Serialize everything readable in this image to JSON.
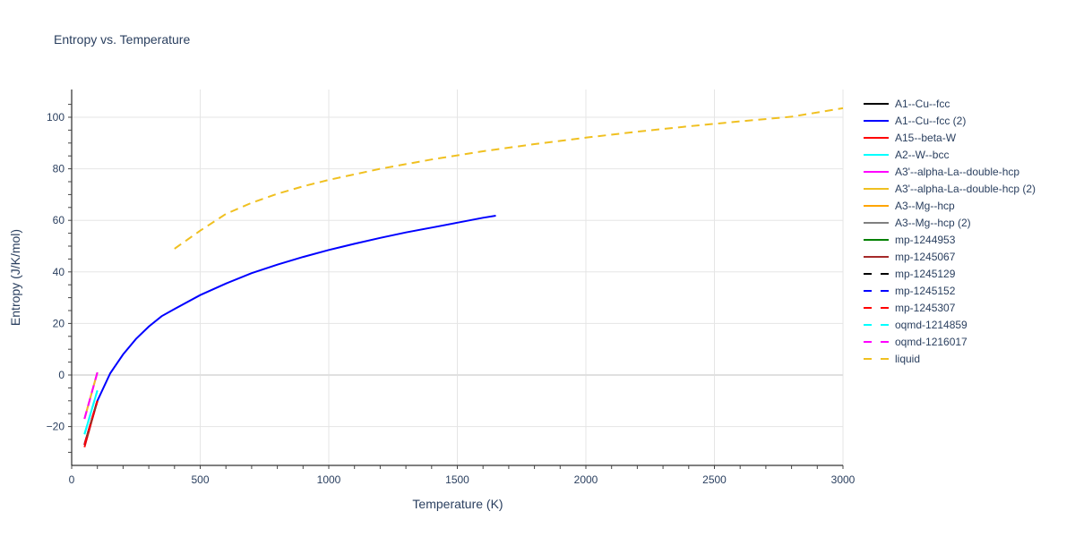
{
  "chart_data": {
    "type": "line",
    "title": "Entropy vs. Temperature",
    "xlabel": "Temperature (K)",
    "ylabel": "Entropy (J/K/mol)",
    "xlim": [
      0,
      3000
    ],
    "ylim": [
      -35,
      110
    ],
    "x_ticks": [
      "0",
      "500",
      "1000",
      "1500",
      "2000",
      "2500",
      "3000"
    ],
    "y_ticks": [
      "−20",
      "0",
      "20",
      "40",
      "60",
      "80",
      "100"
    ],
    "grid": true,
    "legend_position": "right",
    "series": [
      {
        "name": "A1--Cu--fcc",
        "color": "#000000",
        "dash": "solid",
        "x": [
          50,
          100
        ],
        "y": [
          -27,
          -10
        ]
      },
      {
        "name": "A1--Cu--fcc (2)",
        "color": "#0000ff",
        "dash": "solid",
        "x": [
          100,
          150,
          200,
          250,
          300,
          350,
          400,
          500,
          600,
          700,
          800,
          900,
          1000,
          1100,
          1200,
          1300,
          1400,
          1500,
          1600,
          1650
        ],
        "y": [
          -10,
          0.7,
          8,
          14,
          18.8,
          22.8,
          25.6,
          31,
          35.5,
          39.5,
          42.8,
          45.8,
          48.5,
          50.9,
          53.2,
          55.3,
          57.2,
          59.1,
          61,
          61.8
        ]
      },
      {
        "name": "A15--beta-W",
        "color": "#ff0000",
        "dash": "solid",
        "x": [
          50,
          100
        ],
        "y": [
          -28,
          -10
        ]
      },
      {
        "name": "A2--W--bcc",
        "color": "#00ffff",
        "dash": "solid",
        "x": [
          50,
          100
        ],
        "y": [
          -23,
          -6
        ]
      },
      {
        "name": "A3'--alpha-La--double-hcp",
        "color": "#ff00ff",
        "dash": "solid",
        "x": [
          50,
          100
        ],
        "y": [
          -17,
          1
        ]
      },
      {
        "name": "A3'--alpha-La--double-hcp (2)",
        "color": "#f0c020",
        "dash": "solid",
        "x": [
          50,
          100
        ],
        "y": [
          -17,
          1
        ]
      },
      {
        "name": "A3--Mg--hcp",
        "color": "#ffa500",
        "dash": "solid",
        "x": [
          50,
          100
        ],
        "y": [
          -27,
          -10
        ]
      },
      {
        "name": "A3--Mg--hcp (2)",
        "color": "#808080",
        "dash": "solid",
        "x": [
          50,
          100
        ],
        "y": [
          -27,
          -10
        ]
      },
      {
        "name": "mp-1244953",
        "color": "#008000",
        "dash": "solid",
        "x": [
          50,
          100
        ],
        "y": [
          -27,
          -10
        ]
      },
      {
        "name": "mp-1245067",
        "color": "#a52a2a",
        "dash": "solid",
        "x": [
          50,
          100
        ],
        "y": [
          -27,
          -10
        ]
      },
      {
        "name": "mp-1245129",
        "color": "#000000",
        "dash": "dash",
        "x": [
          50,
          100
        ],
        "y": [
          -27,
          -10
        ]
      },
      {
        "name": "mp-1245152",
        "color": "#0000ff",
        "dash": "dash",
        "x": [
          50,
          100
        ],
        "y": [
          -27,
          -10
        ]
      },
      {
        "name": "mp-1245307",
        "color": "#ff0000",
        "dash": "dash",
        "x": [
          50,
          100
        ],
        "y": [
          -27,
          -10
        ]
      },
      {
        "name": "oqmd-1214859",
        "color": "#00ffff",
        "dash": "dash",
        "x": [
          50,
          100
        ],
        "y": [
          -23,
          -6
        ]
      },
      {
        "name": "oqmd-1216017",
        "color": "#ff00ff",
        "dash": "dash",
        "x": [
          50,
          100
        ],
        "y": [
          -17,
          1
        ]
      },
      {
        "name": "liquid",
        "color": "#f0c020",
        "dash": "dash",
        "x": [
          400,
          500,
          600,
          700,
          800,
          900,
          1000,
          1200,
          1400,
          1600,
          1800,
          2000,
          2200,
          2400,
          2600,
          2800,
          3000
        ],
        "y": [
          49,
          56,
          62.5,
          66.8,
          70.3,
          73.2,
          75.7,
          80,
          83.6,
          86.8,
          89.6,
          92.1,
          94.4,
          96.5,
          98.4,
          100.2,
          103.5
        ]
      }
    ]
  }
}
